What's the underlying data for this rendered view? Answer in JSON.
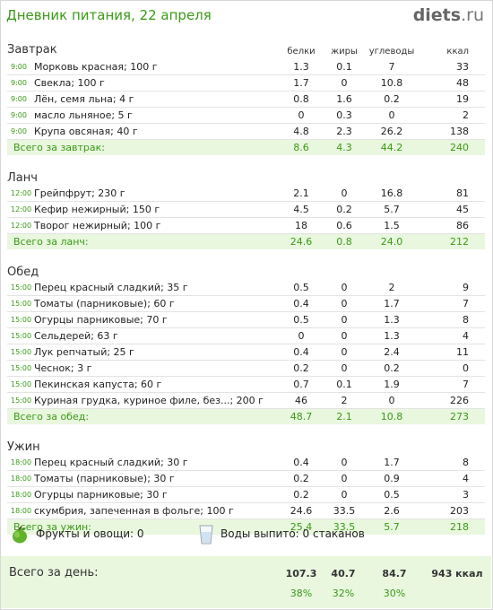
{
  "header": {
    "title": "Дневник питания, 22 апреля",
    "logo_main": "diets",
    "logo_suffix": ".ru"
  },
  "columns": {
    "protein": "белки",
    "fat": "жиры",
    "carbs": "углеводы",
    "kcal": "ккал"
  },
  "meals": [
    {
      "title": "Завтрак",
      "items": [
        {
          "time": "9:00",
          "name": "Морковь красная; 100 г",
          "protein": "1.3",
          "fat": "0.1",
          "carbs": "7",
          "kcal": "33"
        },
        {
          "time": "9:00",
          "name": "Свекла; 100 г",
          "protein": "1.7",
          "fat": "0",
          "carbs": "10.8",
          "kcal": "48"
        },
        {
          "time": "9:00",
          "name": "Лён, семя льна; 4 г",
          "protein": "0.8",
          "fat": "1.6",
          "carbs": "0.2",
          "kcal": "19"
        },
        {
          "time": "9:00",
          "name": "масло льняное; 5 г",
          "protein": "0",
          "fat": "0.3",
          "carbs": "0",
          "kcal": "2"
        },
        {
          "time": "9:00",
          "name": "Крупа овсяная; 40 г",
          "protein": "4.8",
          "fat": "2.3",
          "carbs": "26.2",
          "kcal": "138"
        }
      ],
      "total": {
        "label": "Всего за завтрак:",
        "protein": "8.6",
        "fat": "4.3",
        "carbs": "44.2",
        "kcal": "240"
      }
    },
    {
      "title": "Ланч",
      "items": [
        {
          "time": "12:00",
          "name": "Грейпфрут; 230 г",
          "protein": "2.1",
          "fat": "0",
          "carbs": "16.8",
          "kcal": "81"
        },
        {
          "time": "12:00",
          "name": "Кефир нежирный; 150 г",
          "protein": "4.5",
          "fat": "0.2",
          "carbs": "5.7",
          "kcal": "45"
        },
        {
          "time": "12:00",
          "name": "Творог нежирный; 100 г",
          "protein": "18",
          "fat": "0.6",
          "carbs": "1.5",
          "kcal": "86"
        }
      ],
      "total": {
        "label": "Всего за ланч:",
        "protein": "24.6",
        "fat": "0.8",
        "carbs": "24.0",
        "kcal": "212"
      }
    },
    {
      "title": "Обед",
      "items": [
        {
          "time": "15:00",
          "name": "Перец красный сладкий; 35 г",
          "protein": "0.5",
          "fat": "0",
          "carbs": "2",
          "kcal": "9"
        },
        {
          "time": "15:00",
          "name": "Томаты (парниковые); 60 г",
          "protein": "0.4",
          "fat": "0",
          "carbs": "1.7",
          "kcal": "7"
        },
        {
          "time": "15:00",
          "name": "Огурцы парниковые; 70 г",
          "protein": "0.5",
          "fat": "0",
          "carbs": "1.3",
          "kcal": "8"
        },
        {
          "time": "15:00",
          "name": "Сельдерей; 63 г",
          "protein": "0",
          "fat": "0",
          "carbs": "1.3",
          "kcal": "4"
        },
        {
          "time": "15:00",
          "name": "Лук репчатый; 25 г",
          "protein": "0.4",
          "fat": "0",
          "carbs": "2.4",
          "kcal": "11"
        },
        {
          "time": "15:00",
          "name": "Чеснок; 3 г",
          "protein": "0.2",
          "fat": "0",
          "carbs": "0.2",
          "kcal": "0"
        },
        {
          "time": "15:00",
          "name": "Пекинская капуста; 60 г",
          "protein": "0.7",
          "fat": "0.1",
          "carbs": "1.9",
          "kcal": "7"
        },
        {
          "time": "15:00",
          "name": "Куриная грудка, куриное филе, без...; 200 г",
          "protein": "46",
          "fat": "2",
          "carbs": "0",
          "kcal": "226"
        }
      ],
      "total": {
        "label": "Всего за обед:",
        "protein": "48.7",
        "fat": "2.1",
        "carbs": "10.8",
        "kcal": "273"
      }
    },
    {
      "title": "Ужин",
      "items": [
        {
          "time": "18:00",
          "name": "Перец красный сладкий; 30 г",
          "protein": "0.4",
          "fat": "0",
          "carbs": "1.7",
          "kcal": "8"
        },
        {
          "time": "18:00",
          "name": "Томаты (парниковые); 30 г",
          "protein": "0.2",
          "fat": "0",
          "carbs": "0.9",
          "kcal": "4"
        },
        {
          "time": "18:00",
          "name": "Огурцы парниковые; 30 г",
          "protein": "0.2",
          "fat": "0",
          "carbs": "0.5",
          "kcal": "3"
        },
        {
          "time": "18:00",
          "name": "скумбрия, запеченная  в фольге; 100 г",
          "protein": "24.6",
          "fat": "33.5",
          "carbs": "2.6",
          "kcal": "203"
        }
      ],
      "total": {
        "label": "Всего за ужин:",
        "protein": "25.4",
        "fat": "33.5",
        "carbs": "5.7",
        "kcal": "218"
      }
    }
  ],
  "extras": {
    "fruits_label": "Фрукты и овощи: 0",
    "water_label": "Воды выпито: 0 стаканов"
  },
  "day_total": {
    "label": "Всего за день:",
    "protein": "107.3",
    "fat": "40.7",
    "carbs": "84.7",
    "kcal": "943 ккал",
    "protein_pct": "38%",
    "fat_pct": "32%",
    "carbs_pct": "30%"
  },
  "colors": {
    "accent_green": "#3a9a16",
    "total_bg": "#e9f7df"
  },
  "icons": {
    "fruits": "apple-icon",
    "water": "glass-icon"
  }
}
